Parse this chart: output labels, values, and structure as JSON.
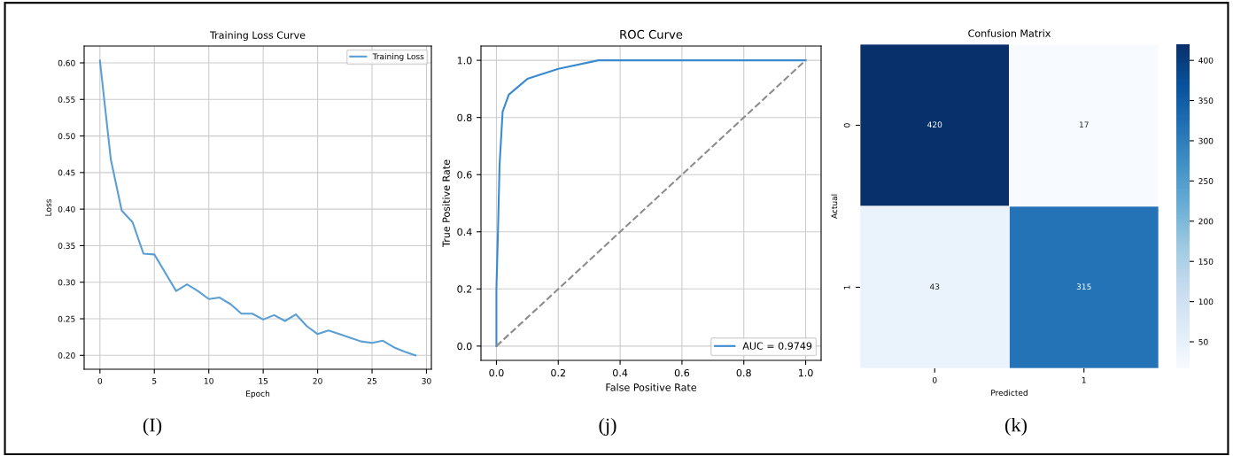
{
  "chart_data": [
    {
      "type": "line",
      "title": "Training Loss Curve",
      "xlabel": "Epoch",
      "ylabel": "Loss",
      "x": [
        0,
        1,
        2,
        3,
        4,
        5,
        6,
        7,
        8,
        9,
        10,
        11,
        12,
        13,
        14,
        15,
        16,
        17,
        18,
        19,
        20,
        21,
        22,
        23,
        24,
        25,
        26,
        27,
        28,
        29
      ],
      "series": [
        {
          "name": "Training Loss",
          "color": "#5a9fd4",
          "values": [
            0.603,
            0.468,
            0.398,
            0.382,
            0.339,
            0.338,
            0.313,
            0.288,
            0.297,
            0.288,
            0.277,
            0.279,
            0.27,
            0.257,
            0.257,
            0.249,
            0.255,
            0.247,
            0.256,
            0.24,
            0.229,
            0.234,
            0.229,
            0.224,
            0.219,
            0.217,
            0.22,
            0.211,
            0.205,
            0.2
          ]
        }
      ],
      "xlim": [
        -1.45,
        30.45
      ],
      "xticks": [
        0,
        5,
        10,
        15,
        20,
        25,
        30
      ],
      "ylim": [
        0.181,
        0.623
      ],
      "yticks": [
        {
          "value": 0.2,
          "label": "0.20"
        },
        {
          "value": 0.25,
          "label": "0.25"
        },
        {
          "value": 0.3,
          "label": "0.30"
        },
        {
          "value": 0.35,
          "label": "0.35"
        },
        {
          "value": 0.4,
          "label": "0.40"
        },
        {
          "value": 0.45,
          "label": "0.45"
        },
        {
          "value": 0.5,
          "label": "0.50"
        },
        {
          "value": 0.55,
          "label": "0.55"
        },
        {
          "value": 0.6,
          "label": "0.60"
        }
      ],
      "grid": true,
      "legend": "top right",
      "annotations": [
        "(I)"
      ]
    },
    {
      "type": "line",
      "title": "ROC Curve",
      "xlabel": "False Positive Rate",
      "ylabel": "True Positive Rate",
      "series": [
        {
          "name": "AUC = 0.9749",
          "color": "#3a8ad0",
          "x": [
            0,
            0,
            0.005,
            0.01,
            0.02,
            0.04,
            0.1,
            0.2,
            0.33,
            1.0
          ],
          "values": [
            0,
            0.2,
            0.4,
            0.63,
            0.82,
            0.88,
            0.935,
            0.97,
            1.0,
            1.0
          ]
        },
        {
          "color": "#8c8c8c",
          "line_style": "dashed",
          "x": [
            0,
            1
          ],
          "values": [
            0,
            1
          ]
        }
      ],
      "xlim": [
        -0.05,
        1.05
      ],
      "xticks": [
        {
          "value": 0,
          "label": "0.0"
        },
        {
          "value": 0.2,
          "label": "0.2"
        },
        {
          "value": 0.4,
          "label": "0.4"
        },
        {
          "value": 0.6,
          "label": "0.6"
        },
        {
          "value": 0.8,
          "label": "0.8"
        },
        {
          "value": 1.0,
          "label": "1.0"
        }
      ],
      "ylim": [
        -0.05,
        1.05
      ],
      "yticks": [
        {
          "value": 0,
          "label": "0.0"
        },
        {
          "value": 0.2,
          "label": "0.2"
        },
        {
          "value": 0.4,
          "label": "0.4"
        },
        {
          "value": 0.6,
          "label": "0.6"
        },
        {
          "value": 0.8,
          "label": "0.8"
        },
        {
          "value": 1.0,
          "label": "1.0"
        }
      ],
      "grid": true,
      "legend": "bottom right",
      "annotations": [
        "(j)"
      ]
    },
    {
      "type": "heatmap",
      "title": "Confusion Matrix",
      "xlabel": "Predicted",
      "ylabel": "Actual",
      "categories": [
        "0",
        "1"
      ],
      "y_categories": [
        "0",
        "1"
      ],
      "cells": [
        [
          420,
          17
        ],
        [
          43,
          315
        ]
      ],
      "data_labels": true,
      "clim": [
        17,
        420
      ],
      "cticks": [
        50,
        100,
        150,
        200,
        250,
        300,
        350,
        400
      ],
      "annotations": [
        "(k)"
      ]
    }
  ]
}
